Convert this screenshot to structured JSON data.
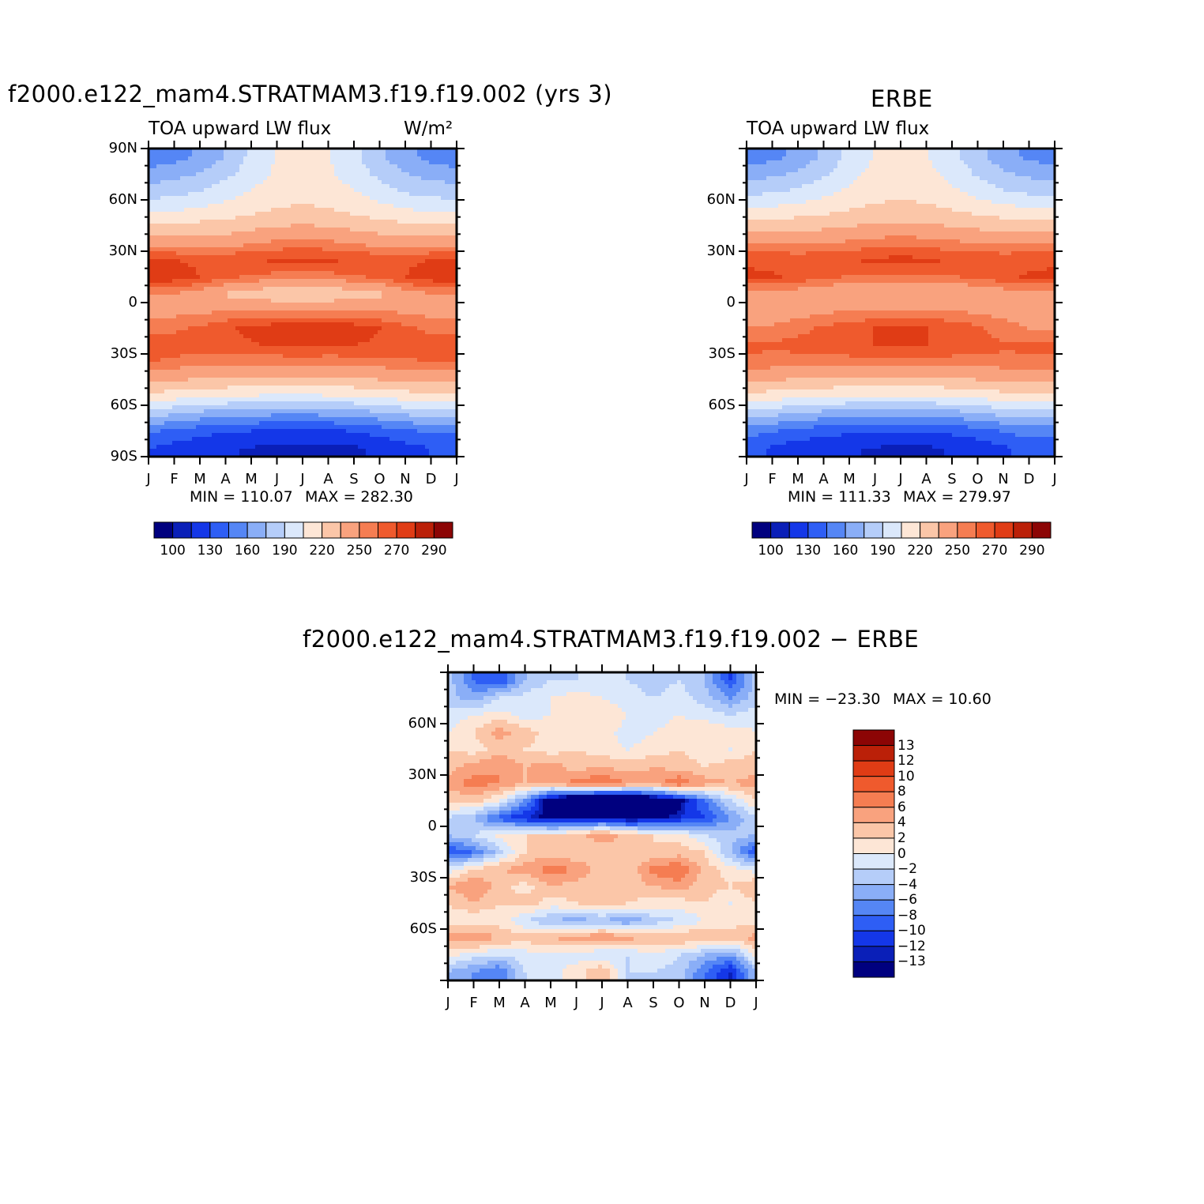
{
  "panels": [
    {
      "id": "model",
      "title": "f2000.e122_mam4.STRATMAM3.f19.f19.002 (yrs 3)",
      "subtitle_left": "TOA upward LW flux",
      "subtitle_right": "W/m²",
      "min_label": "MIN = 110.07",
      "max_label": "MAX = 282.30",
      "y_ticks": [
        "90N",
        "60N",
        "30N",
        "0",
        "30S",
        "60S",
        "90S"
      ],
      "x_ticks": [
        "J",
        "F",
        "M",
        "A",
        "M",
        "J",
        "J",
        "A",
        "S",
        "O",
        "N",
        "D",
        "J"
      ],
      "colorbar_labels": [
        "100",
        "130",
        "160",
        "190",
        "220",
        "250",
        "270",
        "290"
      ]
    },
    {
      "id": "obs",
      "title": "ERBE",
      "subtitle_left": "TOA upward LW flux",
      "min_label": "MIN = 111.33",
      "max_label": "MAX = 279.97",
      "y_ticks": [
        "60N",
        "30N",
        "0",
        "30S",
        "60S"
      ],
      "x_ticks": [
        "J",
        "F",
        "M",
        "A",
        "M",
        "J",
        "J",
        "A",
        "S",
        "O",
        "N",
        "D",
        "J"
      ],
      "colorbar_labels": [
        "100",
        "130",
        "160",
        "190",
        "220",
        "250",
        "270",
        "290"
      ]
    },
    {
      "id": "diff",
      "title": "f2000.e122_mam4.STRATMAM3.f19.f19.002 − ERBE",
      "min_label": "MIN = −23.30",
      "max_label": "MAX = 10.60",
      "y_ticks": [
        "60N",
        "30N",
        "0",
        "30S",
        "60S"
      ],
      "x_ticks": [
        "J",
        "F",
        "M",
        "A",
        "M",
        "J",
        "J",
        "A",
        "S",
        "O",
        "N",
        "D",
        "J"
      ],
      "colorbar_labels": [
        "13",
        "12",
        "10",
        "8",
        "6",
        "4",
        "2",
        "0",
        "−2",
        "−4",
        "−6",
        "−8",
        "−10",
        "−12",
        "−13"
      ]
    }
  ],
  "colors": {
    "flux_palette": [
      "#00007f",
      "#0a1fb8",
      "#1437e8",
      "#2e5ef5",
      "#5586f5",
      "#8aaef7",
      "#b5cdf9",
      "#dbe8fb",
      "#fde6d6",
      "#fbc6a8",
      "#f9a27e",
      "#f57d52",
      "#ef5a2d",
      "#e03c15",
      "#bb2008",
      "#8c0505"
    ],
    "diff_palette": [
      "#8c0505",
      "#bb2008",
      "#e03c15",
      "#ef5a2d",
      "#f57d52",
      "#f9a27e",
      "#fbc6a8",
      "#fde6d6",
      "#dbe8fb",
      "#b5cdf9",
      "#8aaef7",
      "#5586f5",
      "#2e5ef5",
      "#1437e8",
      "#0a1fb8",
      "#00007f"
    ]
  },
  "chart_data": [
    {
      "type": "heatmap",
      "title": "f2000.e122_mam4.STRATMAM3.f19.f19.002 (yrs 3)",
      "subtitle": "TOA upward LW flux",
      "units": "W/m²",
      "x": [
        "J",
        "F",
        "M",
        "A",
        "M",
        "J",
        "J",
        "A",
        "S",
        "O",
        "N",
        "D",
        "J"
      ],
      "ylim": [
        -90,
        90
      ],
      "y_ticks": [
        -90,
        -60,
        -30,
        0,
        30,
        60,
        90
      ],
      "latitudes": [
        -85,
        -75,
        -65,
        -55,
        -45,
        -35,
        -25,
        -15,
        -5,
        5,
        15,
        25,
        35,
        45,
        55,
        65,
        75,
        85
      ],
      "values": [
        [
          130,
          124,
          118,
          116,
          114,
          112,
          110,
          111,
          113,
          118,
          124,
          130,
          130
        ],
        [
          148,
          142,
          136,
          132,
          130,
          128,
          127,
          128,
          131,
          136,
          142,
          148,
          148
        ],
        [
          182,
          176,
          170,
          166,
          164,
          162,
          162,
          163,
          166,
          171,
          177,
          182,
          182
        ],
        [
          215,
          211,
          207,
          205,
          203,
          202,
          202,
          203,
          205,
          208,
          212,
          215,
          215
        ],
        [
          238,
          236,
          234,
          233,
          232,
          232,
          232,
          232,
          233,
          235,
          237,
          238,
          238
        ],
        [
          260,
          257,
          255,
          254,
          253,
          253,
          253,
          253,
          254,
          256,
          258,
          260,
          260
        ],
        [
          268,
          266,
          264,
          266,
          269,
          271,
          272,
          271,
          270,
          268,
          266,
          267,
          268
        ],
        [
          256,
          258,
          262,
          268,
          273,
          276,
          278,
          277,
          276,
          270,
          262,
          257,
          256
        ],
        [
          245,
          246,
          248,
          250,
          251,
          252,
          252,
          252,
          251,
          250,
          248,
          246,
          245
        ],
        [
          250,
          249,
          244,
          233,
          226,
          224,
          224,
          224,
          226,
          232,
          244,
          249,
          250
        ],
        [
          278,
          276,
          270,
          262,
          258,
          256,
          256,
          256,
          258,
          262,
          270,
          276,
          278
        ],
        [
          270,
          270,
          268,
          268,
          270,
          272,
          272,
          272,
          270,
          268,
          268,
          270,
          270
        ],
        [
          245,
          244,
          243,
          244,
          248,
          252,
          255,
          252,
          248,
          245,
          244,
          244,
          245
        ],
        [
          222,
          223,
          224,
          226,
          230,
          234,
          236,
          234,
          230,
          226,
          223,
          222,
          222
        ],
        [
          200,
          202,
          206,
          210,
          215,
          220,
          222,
          220,
          215,
          210,
          205,
          201,
          200
        ],
        [
          182,
          185,
          190,
          198,
          206,
          212,
          214,
          212,
          206,
          196,
          188,
          184,
          182
        ],
        [
          166,
          170,
          176,
          186,
          198,
          208,
          212,
          208,
          198,
          186,
          176,
          170,
          166
        ],
        [
          150,
          154,
          162,
          176,
          194,
          205,
          208,
          205,
          194,
          178,
          164,
          155,
          150
        ]
      ]
    },
    {
      "type": "heatmap",
      "title": "ERBE",
      "subtitle": "TOA upward LW flux",
      "x": [
        "J",
        "F",
        "M",
        "A",
        "M",
        "J",
        "J",
        "A",
        "S",
        "O",
        "N",
        "D",
        "J"
      ],
      "ylim": [
        -90,
        90
      ],
      "y_ticks": [
        -60,
        -30,
        0,
        30,
        60
      ],
      "latitudes": [
        -85,
        -75,
        -65,
        -55,
        -45,
        -35,
        -25,
        -15,
        -5,
        5,
        15,
        25,
        35,
        45,
        55,
        65,
        75,
        85
      ],
      "values": [
        [
          135,
          128,
          122,
          118,
          116,
          114,
          112,
          113,
          116,
          121,
          128,
          134,
          135
        ],
        [
          152,
          146,
          140,
          136,
          133,
          131,
          130,
          131,
          134,
          139,
          146,
          152,
          152
        ],
        [
          185,
          179,
          173,
          169,
          167,
          165,
          164,
          165,
          168,
          173,
          179,
          185,
          185
        ],
        [
          216,
          212,
          208,
          206,
          204,
          203,
          203,
          204,
          206,
          209,
          213,
          216,
          216
        ],
        [
          238,
          236,
          234,
          233,
          232,
          232,
          232,
          232,
          233,
          235,
          237,
          238,
          238
        ],
        [
          258,
          256,
          254,
          254,
          255,
          256,
          256,
          256,
          255,
          255,
          256,
          258,
          258
        ],
        [
          262,
          262,
          264,
          266,
          268,
          270,
          270,
          270,
          268,
          265,
          262,
          262,
          262
        ],
        [
          250,
          252,
          256,
          262,
          266,
          270,
          271,
          270,
          268,
          262,
          254,
          250,
          250
        ],
        [
          242,
          243,
          245,
          248,
          250,
          250,
          250,
          250,
          250,
          248,
          246,
          243,
          242
        ],
        [
          246,
          245,
          242,
          238,
          236,
          234,
          234,
          234,
          236,
          238,
          242,
          245,
          246
        ],
        [
          272,
          271,
          268,
          262,
          259,
          258,
          258,
          258,
          259,
          262,
          268,
          271,
          272
        ],
        [
          268,
          268,
          267,
          268,
          270,
          272,
          273,
          272,
          270,
          268,
          267,
          268,
          268
        ],
        [
          250,
          249,
          248,
          249,
          252,
          255,
          257,
          255,
          252,
          250,
          248,
          249,
          250
        ],
        [
          228,
          228,
          229,
          231,
          234,
          237,
          238,
          237,
          234,
          231,
          228,
          228,
          228
        ],
        [
          205,
          207,
          210,
          214,
          219,
          223,
          224,
          223,
          219,
          214,
          209,
          206,
          205
        ],
        [
          185,
          188,
          193,
          200,
          208,
          214,
          216,
          214,
          208,
          199,
          191,
          187,
          185
        ],
        [
          168,
          172,
          178,
          188,
          200,
          210,
          213,
          210,
          200,
          188,
          178,
          172,
          168
        ],
        [
          152,
          156,
          164,
          178,
          195,
          206,
          209,
          206,
          195,
          180,
          166,
          157,
          152
        ]
      ]
    },
    {
      "type": "heatmap",
      "title": "f2000.e122_mam4.STRATMAM3.f19.f19.002 − ERBE",
      "x": [
        "J",
        "F",
        "M",
        "A",
        "M",
        "J",
        "J",
        "A",
        "S",
        "O",
        "N",
        "D",
        "J"
      ],
      "ylim": [
        -90,
        90
      ],
      "y_ticks": [
        -60,
        -30,
        0,
        30,
        60
      ],
      "latitudes": [
        -85,
        -75,
        -65,
        -55,
        -45,
        -35,
        -25,
        -15,
        -5,
        5,
        15,
        25,
        35,
        45,
        55,
        65,
        75,
        85
      ],
      "values": [
        [
          -4,
          -6,
          -8,
          -2,
          -1,
          1,
          4,
          -2,
          -2,
          -3,
          -8,
          -12,
          -4
        ],
        [
          1,
          -1,
          -2,
          -1,
          0,
          -1,
          -2,
          -2,
          0,
          -2,
          -4,
          -6,
          1
        ],
        [
          5,
          6,
          4,
          3,
          4,
          5,
          6,
          5,
          3,
          4,
          4,
          3,
          5
        ],
        [
          1,
          0,
          1,
          -2,
          -4,
          -5,
          -4,
          -6,
          -3,
          -2,
          0,
          1,
          1
        ],
        [
          2,
          4,
          2,
          3,
          1,
          2,
          3,
          2,
          1,
          1,
          2,
          0,
          2
        ],
        [
          4,
          6,
          3,
          1,
          4,
          3,
          2,
          3,
          4,
          5,
          3,
          2,
          4
        ],
        [
          -1,
          2,
          4,
          5,
          7,
          6,
          3,
          2,
          7,
          8,
          3,
          1,
          -1
        ],
        [
          -10,
          -8,
          -3,
          2,
          3,
          2,
          2,
          3,
          2,
          3,
          2,
          -4,
          -10
        ],
        [
          -4,
          -2,
          1,
          2,
          2,
          3,
          6,
          3,
          2,
          1,
          -2,
          -3,
          -4
        ],
        [
          -2,
          -4,
          -9,
          -12,
          -14,
          -14,
          -13,
          -15,
          -14,
          -12,
          -10,
          -6,
          -2
        ],
        [
          2,
          3,
          0,
          -6,
          -16,
          -20,
          -22,
          -21,
          -18,
          -14,
          -8,
          -2,
          2
        ],
        [
          5,
          7,
          6,
          4,
          4,
          7,
          8,
          6,
          5,
          8,
          5,
          4,
          5
        ],
        [
          3,
          5,
          6,
          4,
          5,
          3,
          4,
          3,
          4,
          3,
          2,
          3,
          3
        ],
        [
          2,
          1,
          3,
          2,
          1,
          2,
          1,
          0,
          1,
          2,
          1,
          0,
          2
        ],
        [
          0,
          2,
          5,
          3,
          1,
          2,
          1,
          -1,
          0,
          1,
          2,
          1,
          0
        ],
        [
          -1,
          0,
          1,
          -1,
          0,
          1,
          2,
          0,
          -1,
          0,
          -1,
          -2,
          -1
        ],
        [
          -3,
          -5,
          -2,
          -1,
          0,
          1,
          0,
          -1,
          -2,
          -1,
          -3,
          -6,
          -3
        ],
        [
          -3,
          -8,
          -10,
          -4,
          -2,
          -2,
          -1,
          -2,
          -3,
          -2,
          -4,
          -10,
          -3
        ]
      ]
    }
  ]
}
